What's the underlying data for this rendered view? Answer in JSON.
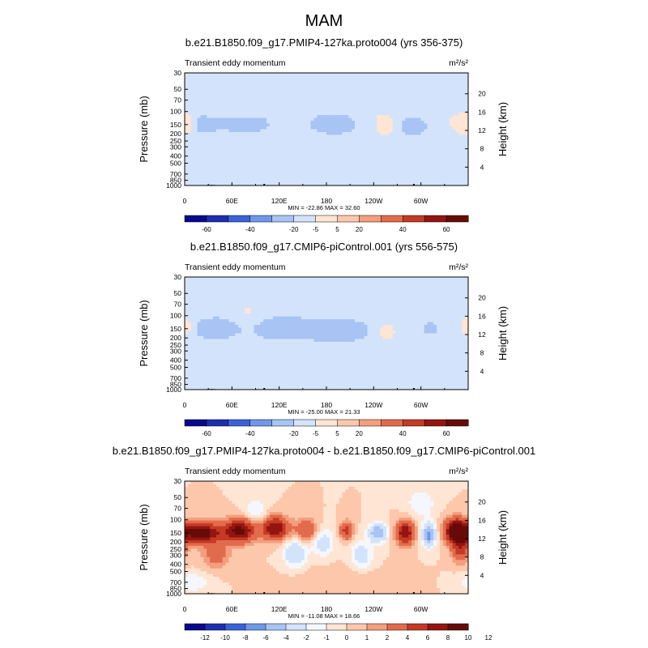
{
  "figure_title": "MAM",
  "colors": {
    "abs_levels": [
      "#08088e",
      "#1b2fb0",
      "#3a62d8",
      "#6f98ea",
      "#a7c4f4",
      "#d3e3fb",
      "#ffe5d3",
      "#fcc7ab",
      "#f39e7c",
      "#e26b4c",
      "#c43a24",
      "#941510",
      "#660b08"
    ],
    "diff_levels": [
      "#08088e",
      "#1b2fb0",
      "#3a62d8",
      "#6f98ea",
      "#a7c4f4",
      "#d3e3fb",
      "#f4f7fd",
      "#ffe5d3",
      "#fcc7ab",
      "#f39e7c",
      "#e26b4c",
      "#c43a24",
      "#941510",
      "#660b08"
    ]
  },
  "chart_data": [
    {
      "type": "heatmap",
      "title": "b.e21.B1850.f09_g17.PMIP4-127ka.proto004 (yrs 356-375)",
      "left_label": "Transient eddy momentum",
      "units": "m²/s²",
      "ylabel": "Pressure (mb)",
      "y2label": "Height (km)",
      "x_ticks": [
        "0",
        "60E",
        "120E",
        "180",
        "120W",
        "60W"
      ],
      "y_ticks": [
        "30",
        "50",
        "70",
        "100",
        "150",
        "200",
        "250",
        "300",
        "400",
        "500",
        "700",
        "850",
        "1000"
      ],
      "y2_ticks": [
        "20",
        "16",
        "12",
        "8",
        "4"
      ],
      "stats": "MIN = -22.86  MAX =  32.60",
      "colorbar_labels": [
        "-60",
        "-40",
        "-20",
        "-5",
        "5",
        "20",
        "40",
        "60"
      ],
      "ylim": [
        1000,
        30
      ],
      "xlim": [
        0,
        360
      ]
    },
    {
      "type": "heatmap",
      "title": "b.e21.B1850.f09_g17.CMIP6-piControl.001 (yrs 556-575)",
      "left_label": "Transient eddy momentum",
      "units": "m²/s²",
      "ylabel": "Pressure (mb)",
      "y2label": "Height (km)",
      "x_ticks": [
        "0",
        "60E",
        "120E",
        "180",
        "120W",
        "60W"
      ],
      "y_ticks": [
        "30",
        "50",
        "70",
        "100",
        "150",
        "200",
        "250",
        "300",
        "400",
        "500",
        "700",
        "850",
        "1000"
      ],
      "y2_ticks": [
        "20",
        "16",
        "12",
        "8",
        "4"
      ],
      "stats": "MIN = -25.00  MAX =  21.33",
      "colorbar_labels": [
        "-60",
        "-40",
        "-20",
        "-5",
        "5",
        "20",
        "40",
        "60"
      ],
      "ylim": [
        1000,
        30
      ],
      "xlim": [
        0,
        360
      ]
    },
    {
      "type": "heatmap",
      "title": "b.e21.B1850.f09_g17.PMIP4-127ka.proto004 - b.e21.B1850.f09_g17.CMIP6-piControl.001",
      "left_label": "Transient eddy momentum",
      "units": "m²/s²",
      "ylabel": "Pressure (mb)",
      "y2label": "Height (km)",
      "x_ticks": [
        "0",
        "60E",
        "120E",
        "180",
        "120W",
        "60W"
      ],
      "y_ticks": [
        "30",
        "50",
        "70",
        "100",
        "150",
        "200",
        "250",
        "300",
        "400",
        "500",
        "700",
        "850",
        "1000"
      ],
      "y2_ticks": [
        "20",
        "16",
        "12",
        "8",
        "4"
      ],
      "stats": "MIN = -11.08  MAX =  18.66",
      "colorbar_labels": [
        "-12",
        "-10",
        "-8",
        "-6",
        "-4",
        "-2",
        "-1",
        "0",
        "1",
        "2",
        "4",
        "6",
        "8",
        "10",
        "12"
      ],
      "ylim": [
        1000,
        30
      ],
      "xlim": [
        0,
        360
      ]
    }
  ]
}
